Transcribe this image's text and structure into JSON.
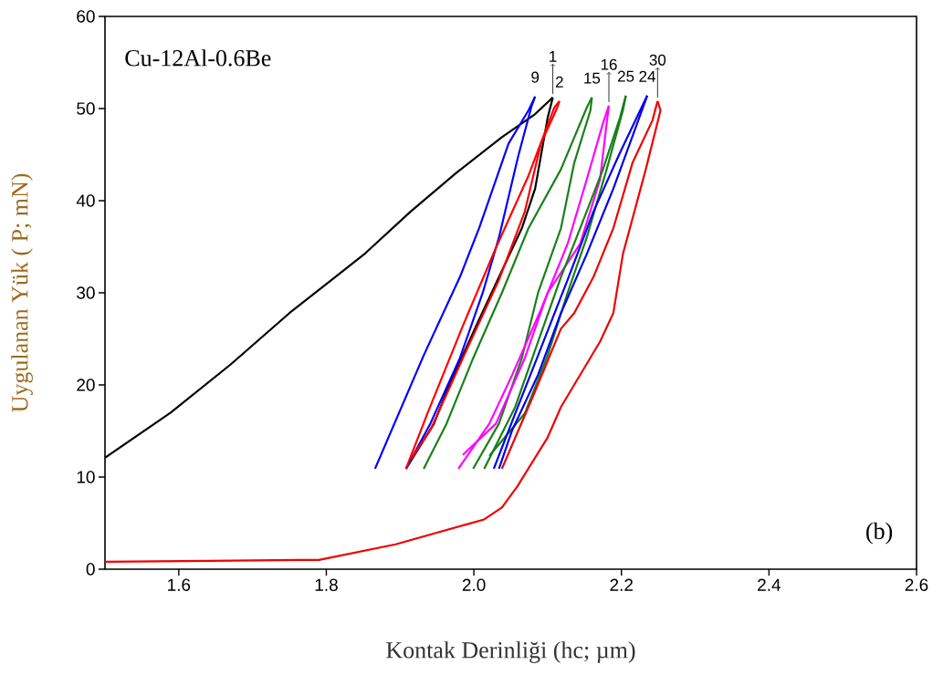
{
  "chart_data": {
    "type": "line",
    "xlabel": "Kontak Derinliği (hc; µm)",
    "ylabel": "Uygulanan Yük ( P; mN)",
    "xlim": [
      1.5,
      2.6
    ],
    "ylim": [
      0,
      60
    ],
    "xticks": [
      {
        "value": 1.6,
        "label": "1.6"
      },
      {
        "value": 1.8,
        "label": "1.8"
      },
      {
        "value": 2.0,
        "label": "2.0"
      },
      {
        "value": 2.2,
        "label": "2.2"
      },
      {
        "value": 2.4,
        "label": "2.4"
      },
      {
        "value": 2.6,
        "label": "2.6"
      }
    ],
    "yticks": [
      0,
      10,
      20,
      30,
      40,
      50,
      60
    ],
    "grid": false,
    "series": [
      {
        "color": "#000000",
        "x": [
          1.5,
          1.589,
          1.67,
          1.75,
          1.804,
          1.853,
          1.914,
          1.976,
          2.038,
          2.083,
          2.107
        ],
        "values": [
          12.1,
          17.0,
          22.2,
          27.8,
          31.2,
          34.3,
          38.8,
          43.0,
          46.9,
          49.4,
          51.2
        ]
      },
      {
        "color": "#000000",
        "x": [
          1.908,
          1.946,
          1.963,
          2.003,
          2.034,
          2.065,
          2.083,
          2.087,
          2.1,
          2.107
        ],
        "values": [
          10.9,
          15.8,
          19.3,
          26.4,
          31.7,
          37.0,
          41.3,
          null,
          49.0,
          51.2
        ]
      },
      {
        "color": "#0000ff",
        "x": [
          1.866,
          1.932,
          1.981,
          2.007,
          2.047,
          2.074,
          2.083
        ],
        "values": [
          10.9,
          23.2,
          31.7,
          37.0,
          46.2,
          49.8,
          51.3
        ]
      },
      {
        "color": "#0000ff",
        "x": [
          1.908,
          1.941,
          1.981,
          2.012,
          2.034,
          2.06,
          2.078,
          2.083
        ],
        "values": [
          10.9,
          15.8,
          22.9,
          30.0,
          36.0,
          44.8,
          50.2,
          51.3
        ]
      },
      {
        "color": "#ff0000",
        "x": [
          1.908,
          1.937,
          1.985,
          2.03,
          2.074,
          2.109,
          2.116
        ],
        "values": [
          10.9,
          16.9,
          26.4,
          34.9,
          42.7,
          50.1,
          50.8
        ]
      },
      {
        "color": "#ff0000",
        "x": [
          1.915,
          1.941,
          1.985,
          2.034,
          2.069,
          2.091,
          2.113,
          2.116
        ],
        "values": [
          12.0,
          15.1,
          22.9,
          31.4,
          38.8,
          46.2,
          50.1,
          50.8
        ]
      },
      {
        "color": "#1a801a",
        "x": [
          1.932,
          1.963,
          1.999,
          2.038,
          2.074,
          2.118,
          2.153,
          2.16
        ],
        "values": [
          10.9,
          15.8,
          22.9,
          30.0,
          37.0,
          43.4,
          50.1,
          51.2
        ]
      },
      {
        "color": "#1a801a",
        "x": [
          1.999,
          2.034,
          2.065,
          2.087,
          2.118,
          2.136,
          2.158,
          2.16
        ],
        "values": [
          10.9,
          15.8,
          22.9,
          30.0,
          37.0,
          44.1,
          49.8,
          51.2
        ]
      },
      {
        "color": "#ff00ff",
        "x": [
          1.979,
          2.021,
          2.052,
          2.091,
          2.127,
          2.153,
          2.175,
          2.183
        ],
        "values": [
          10.9,
          15.8,
          21.1,
          28.2,
          35.3,
          42.3,
          48.4,
          50.3
        ]
      },
      {
        "color": "#ff00ff",
        "x": [
          1.985,
          2.03,
          2.069,
          2.1,
          2.144,
          2.171,
          2.18,
          2.183
        ],
        "values": [
          12.4,
          15.8,
          22.9,
          30.0,
          35.3,
          42.3,
          48.4,
          50.3
        ]
      },
      {
        "color": "#168016",
        "x": [
          2.014,
          2.056,
          2.087,
          2.118,
          2.144,
          2.175,
          2.198,
          2.206
        ],
        "values": [
          10.9,
          17.6,
          24.7,
          31.7,
          37.0,
          43.4,
          49.0,
          51.4
        ]
      },
      {
        "color": "#168016",
        "x": [
          2.021,
          2.069,
          2.1,
          2.127,
          2.153,
          2.18,
          2.202,
          2.206
        ],
        "values": [
          12.3,
          16.9,
          23.2,
          30.0,
          36.0,
          43.4,
          49.8,
          51.4
        ]
      },
      {
        "color": "#0000f0",
        "x": [
          2.027,
          2.056,
          2.087,
          2.127,
          2.162,
          2.198,
          2.235
        ],
        "values": [
          10.9,
          16.9,
          23.2,
          31.4,
          38.8,
          45.2,
          51.4
        ]
      },
      {
        "color": "#0000f0",
        "x": [
          2.034,
          2.052,
          2.087,
          2.118,
          2.153,
          2.189,
          2.215,
          2.235
        ],
        "values": [
          10.9,
          15.1,
          21.1,
          27.8,
          34.2,
          41.3,
          47.0,
          51.4
        ]
      },
      {
        "color": "#f00000",
        "x": [
          1.5,
          1.762,
          1.79,
          1.894,
          2.014,
          2.038,
          2.059,
          2.1,
          2.118,
          2.171,
          2.189,
          2.202,
          2.233,
          2.253,
          2.249
        ],
        "values": [
          0.8,
          1.0,
          1.0,
          2.7,
          5.4,
          6.7,
          9.0,
          14.3,
          17.6,
          24.7,
          27.8,
          34.2,
          43.4,
          49.8,
          50.8
        ]
      },
      {
        "color": "#f00000",
        "x": [
          2.038,
          2.083,
          2.118,
          2.136,
          2.162,
          2.189,
          2.215,
          2.242,
          2.249
        ],
        "values": [
          10.9,
          19.3,
          26.1,
          27.8,
          31.7,
          37.0,
          44.1,
          48.7,
          50.8
        ]
      }
    ],
    "annotations": [
      "Cu-12Al-0.6Be",
      "(b)",
      {
        "text": "9",
        "x": 2.083,
        "y": 51.3
      },
      {
        "text": "1",
        "x": 2.107,
        "y": 51.2
      },
      {
        "text": "2",
        "x": 2.116,
        "y": 50.8
      },
      {
        "text": "15",
        "x": 2.16,
        "y": 51.2
      },
      {
        "text": "16",
        "x": 2.183,
        "y": 50.3
      },
      {
        "text": "25",
        "x": 2.206,
        "y": 51.4
      },
      {
        "text": "24",
        "x": 2.235,
        "y": 51.4
      },
      {
        "text": "30",
        "x": 2.249,
        "y": 50.8
      }
    ]
  }
}
